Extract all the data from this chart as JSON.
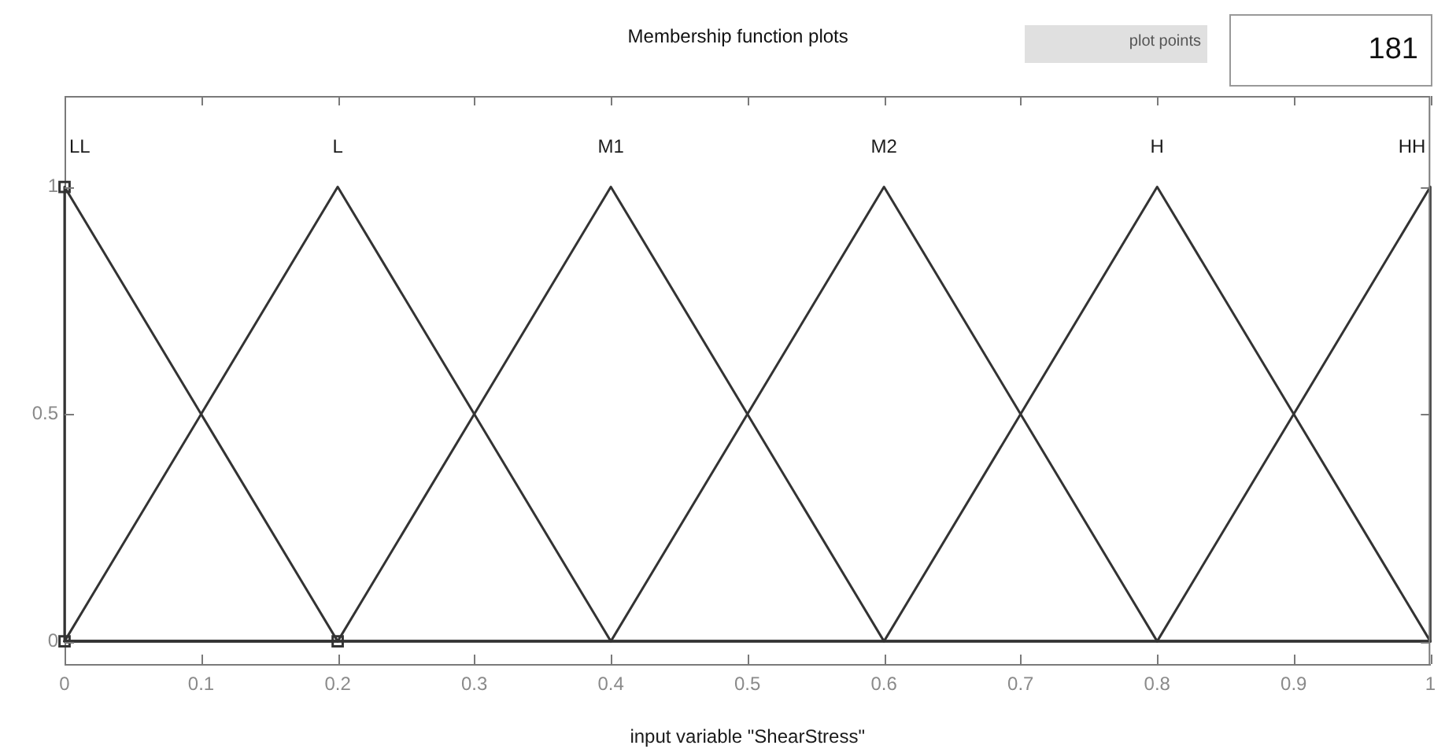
{
  "chart_data": {
    "type": "line",
    "title": "Membership function plots",
    "xlabel": "input variable \"ShearStress\"",
    "annotations": [
      "plot points",
      "181"
    ],
    "series": [
      {
        "name": "LL",
        "color": "#333333",
        "marker": "square",
        "x": [
          0,
          0,
          0.2
        ],
        "values": [
          0,
          1,
          0
        ]
      },
      {
        "name": "L",
        "color": "#333333",
        "x": [
          0,
          0.2,
          0.4,
          1
        ],
        "values": [
          0,
          1,
          0,
          0
        ]
      },
      {
        "name": "M1",
        "color": "#333333",
        "x": [
          0,
          0.2,
          0.4,
          0.6,
          1
        ],
        "values": [
          0,
          0,
          1,
          0,
          0
        ]
      },
      {
        "name": "M2",
        "color": "#333333",
        "x": [
          0,
          0.4,
          0.6,
          0.8,
          1
        ],
        "values": [
          0,
          0,
          1,
          0,
          0
        ]
      },
      {
        "name": "H",
        "color": "#333333",
        "x": [
          0,
          0.6,
          0.8,
          1
        ],
        "values": [
          0,
          0,
          1,
          0
        ]
      },
      {
        "name": "HH",
        "color": "#333333",
        "x": [
          0,
          0.8,
          1,
          1
        ],
        "values": [
          0,
          0,
          1,
          0
        ]
      }
    ],
    "xlim": [
      0,
      1
    ],
    "ylim": [
      -0.05,
      1.2
    ],
    "xticks": [
      0,
      0.1,
      0.2,
      0.3,
      0.4,
      0.5,
      0.6,
      0.7,
      0.8,
      0.9,
      1
    ],
    "yticks": [
      0,
      0.5,
      1
    ],
    "grid": false,
    "legend": false,
    "marker": "none"
  }
}
